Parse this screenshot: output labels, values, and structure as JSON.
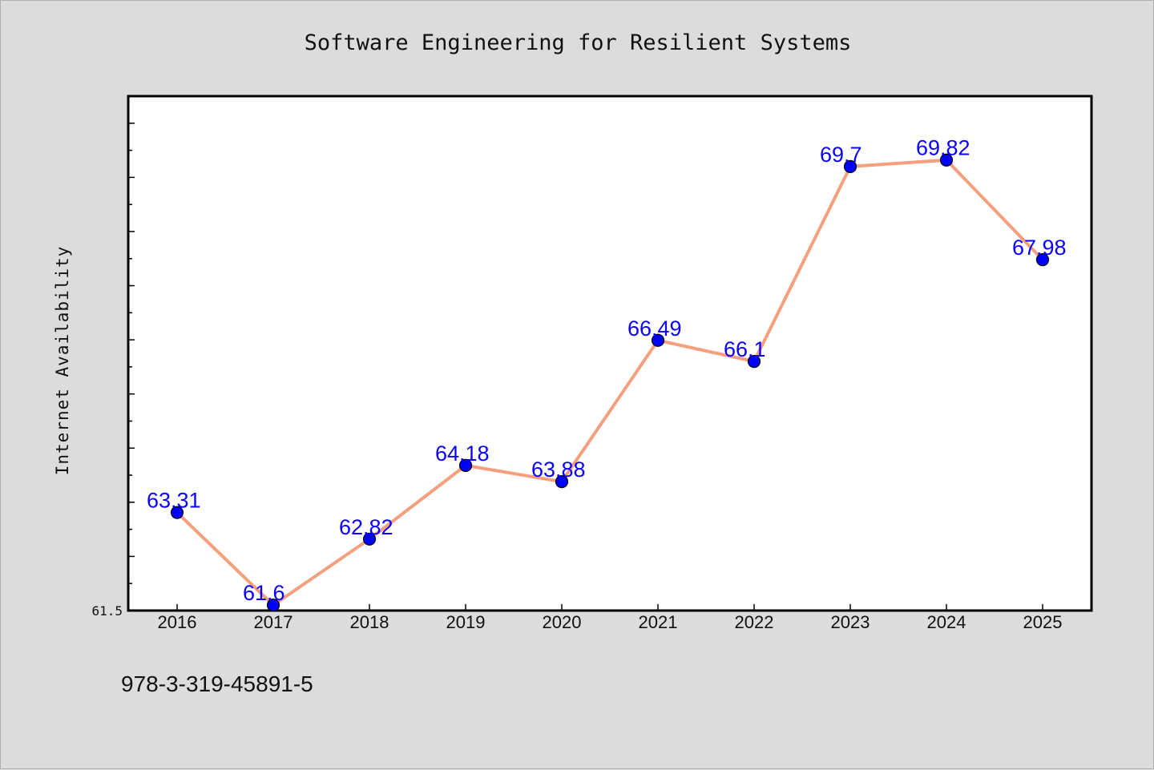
{
  "chart_data": {
    "type": "line",
    "title": "Software Engineering for Resilient Systems",
    "xlabel": "",
    "ylabel": "Internet Availability",
    "categories": [
      "2016",
      "2017",
      "2018",
      "2019",
      "2020",
      "2021",
      "2022",
      "2023",
      "2024",
      "2025"
    ],
    "series": [
      {
        "values": [
          63.31,
          61.6,
          62.82,
          64.18,
          63.88,
          66.49,
          66.1,
          69.7,
          69.82,
          67.98
        ],
        "line_color": "#f4a07e",
        "marker_color": "#0000ff"
      }
    ],
    "data_labels": [
      "63.31",
      "61.6",
      "62.82",
      "64.18",
      "63.88",
      "66.49",
      "66.1",
      "69.7",
      "69.82",
      "67.98"
    ],
    "ylim": [
      61.5,
      71.0
    ],
    "y_tick_labels": [
      "61.5"
    ],
    "grid": false,
    "legend": "none"
  },
  "footnote": "978-3-319-45891-5"
}
